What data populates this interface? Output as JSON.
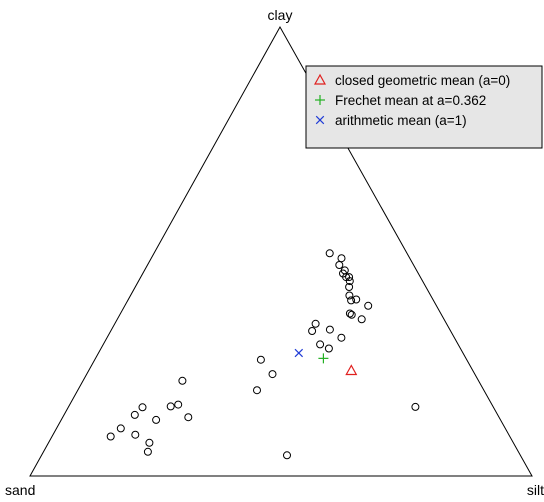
{
  "chart_data": {
    "type": "scatter",
    "subtype": "ternary",
    "vertices": {
      "top": "clay",
      "left": "sand",
      "right": "silt"
    },
    "legend": {
      "placement": "top-right",
      "background": "#e6e6e6",
      "entries": [
        {
          "label": "closed geometric mean (a=0)",
          "marker": "triangle",
          "color": "#e0201f"
        },
        {
          "label": "Frechet mean at a=0.362",
          "marker": "plus",
          "color": "#22b022"
        },
        {
          "label": "arithmetic mean (a=1)",
          "marker": "cross",
          "color": "#1f3bd6"
        }
      ]
    },
    "means": [
      {
        "name": "closed geometric mean (a=0)",
        "sand": 0.242,
        "silt": 0.523,
        "clay": 0.235
      },
      {
        "name": "Frechet mean at a=0.362",
        "sand": 0.284,
        "silt": 0.454,
        "clay": 0.262
      },
      {
        "name": "arithmetic mean (a=1)",
        "sand": 0.327,
        "silt": 0.399,
        "clay": 0.274
      }
    ],
    "points": [
      {
        "sand": 0.154,
        "silt": 0.35,
        "clay": 0.496
      },
      {
        "sand": 0.136,
        "silt": 0.379,
        "clay": 0.485
      },
      {
        "sand": 0.148,
        "silt": 0.382,
        "clay": 0.47
      },
      {
        "sand": 0.143,
        "silt": 0.399,
        "clay": 0.458
      },
      {
        "sand": 0.15,
        "silt": 0.399,
        "clay": 0.451
      },
      {
        "sand": 0.142,
        "silt": 0.415,
        "clay": 0.443
      },
      {
        "sand": 0.148,
        "silt": 0.409,
        "clay": 0.443
      },
      {
        "sand": 0.145,
        "silt": 0.421,
        "clay": 0.434
      },
      {
        "sand": 0.153,
        "silt": 0.426,
        "clay": 0.421
      },
      {
        "sand": 0.162,
        "silt": 0.436,
        "clay": 0.402
      },
      {
        "sand": 0.153,
        "silt": 0.454,
        "clay": 0.393
      },
      {
        "sand": 0.164,
        "silt": 0.445,
        "clay": 0.391
      },
      {
        "sand": 0.136,
        "silt": 0.485,
        "clay": 0.379
      },
      {
        "sand": 0.181,
        "silt": 0.457,
        "clay": 0.362
      },
      {
        "sand": 0.179,
        "silt": 0.462,
        "clay": 0.359
      },
      {
        "sand": 0.164,
        "silt": 0.487,
        "clay": 0.349
      },
      {
        "sand": 0.261,
        "silt": 0.4,
        "clay": 0.339
      },
      {
        "sand": 0.239,
        "silt": 0.435,
        "clay": 0.326
      },
      {
        "sand": 0.225,
        "silt": 0.467,
        "clay": 0.308
      },
      {
        "sand": 0.276,
        "silt": 0.401,
        "clay": 0.323
      },
      {
        "sand": 0.275,
        "silt": 0.432,
        "clay": 0.293
      },
      {
        "sand": 0.262,
        "silt": 0.454,
        "clay": 0.284
      },
      {
        "sand": 0.41,
        "silt": 0.331,
        "clay": 0.259
      },
      {
        "sand": 0.403,
        "silt": 0.37,
        "clay": 0.227
      },
      {
        "sand": 0.452,
        "silt": 0.357,
        "clay": 0.191
      },
      {
        "sand": 0.155,
        "silt": 0.691,
        "clay": 0.154
      },
      {
        "sand": 0.59,
        "silt": 0.198,
        "clay": 0.212
      },
      {
        "sand": 0.625,
        "silt": 0.216,
        "clay": 0.159
      },
      {
        "sand": 0.642,
        "silt": 0.203,
        "clay": 0.155
      },
      {
        "sand": 0.619,
        "silt": 0.25,
        "clay": 0.131
      },
      {
        "sand": 0.699,
        "silt": 0.148,
        "clay": 0.153
      },
      {
        "sand": 0.723,
        "silt": 0.141,
        "clay": 0.136
      },
      {
        "sand": 0.686,
        "silt": 0.189,
        "clay": 0.125
      },
      {
        "sand": 0.795,
        "silt": 0.117,
        "clay": 0.088
      },
      {
        "sand": 0.766,
        "silt": 0.128,
        "clay": 0.106
      },
      {
        "sand": 0.744,
        "silt": 0.164,
        "clay": 0.092
      },
      {
        "sand": 0.725,
        "silt": 0.201,
        "clay": 0.074
      },
      {
        "sand": 0.738,
        "silt": 0.208,
        "clay": 0.054
      },
      {
        "sand": 0.465,
        "silt": 0.489,
        "clay": 0.046
      }
    ],
    "marker": "open-circle",
    "point_color": "#000000"
  }
}
